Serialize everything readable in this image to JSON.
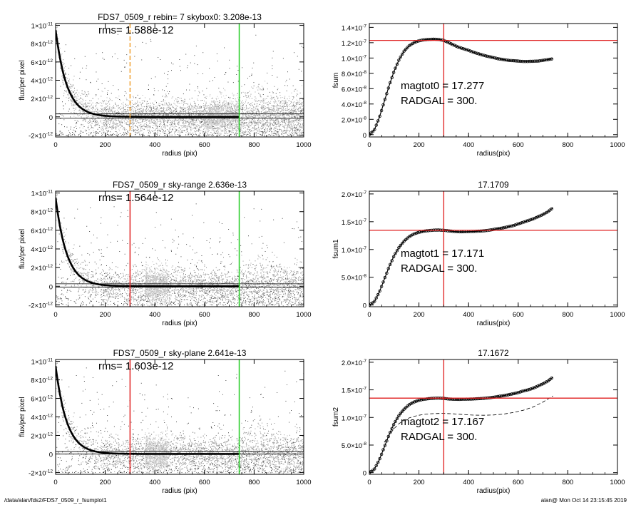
{
  "footer": {
    "left": "/data/alan/fds2/FDS7_0509_r_fsumplot1",
    "right": "alan@  Mon Oct 14 23:15:45 2019"
  },
  "colors": {
    "black": "#000000",
    "grey": "#a0a0a0",
    "red": "#e02020",
    "green": "#22cc22",
    "orange": "#f0a030"
  },
  "chart_data": [
    {
      "id": "profile0",
      "type": "scatter",
      "title": "FDS7_0509_r rebin= 7    skybox0:  3.208e-13",
      "annotation": "rms= 1.588e-12",
      "xlabel": "radius (pix)",
      "ylabel": "flux/per pixel",
      "xlim": [
        0,
        1000
      ],
      "ylim": [
        -2.2e-12,
        1.02e-11
      ],
      "xticks": [
        "0",
        "200",
        "400",
        "600",
        "800",
        "1000"
      ],
      "yticks": [
        {
          "v": 1e-11,
          "m": "1×10",
          "e": "-11"
        },
        {
          "v": 8e-12,
          "m": "8×10",
          "e": "-12"
        },
        {
          "v": 6e-12,
          "m": "6×10",
          "e": "-12"
        },
        {
          "v": 4e-12,
          "m": "4×10",
          "e": "-12"
        },
        {
          "v": 2e-12,
          "m": "2×10",
          "e": "-12"
        },
        {
          "v": 0,
          "m": "0",
          "e": ""
        },
        {
          "v": -2e-12,
          "m": "-2×10",
          "e": "-12"
        }
      ],
      "profile": {
        "amplitude": 9.5e-12,
        "scale": 45,
        "sky": 0
      },
      "hlines": [
        3.2e-13,
        -1.6e-13
      ],
      "vlines": [
        {
          "x": 300,
          "color": "orange",
          "dashed": true
        },
        {
          "x": 740,
          "color": "green",
          "dashed": false
        }
      ],
      "grey_band": [
        600,
        740
      ]
    },
    {
      "id": "fsum0",
      "type": "line",
      "title": "",
      "annotation_lines": [
        "magtot0 = 17.277",
        "RADGAL =    300."
      ],
      "xlabel": "radius(pix)",
      "ylabel": "fsum",
      "xlim": [
        0,
        1000
      ],
      "ylim": [
        -3e-09,
        1.45e-07
      ],
      "xticks": [
        "0",
        "200",
        "400",
        "600",
        "800",
        "1000"
      ],
      "yticks": [
        {
          "v": 1.4e-07,
          "m": "1.4×10",
          "e": "-7"
        },
        {
          "v": 1.2e-07,
          "m": "1.2×10",
          "e": "-7"
        },
        {
          "v": 1e-07,
          "m": "1.0×10",
          "e": "-7"
        },
        {
          "v": 8e-08,
          "m": "8.0×10",
          "e": "-8"
        },
        {
          "v": 6e-08,
          "m": "6.0×10",
          "e": "-8"
        },
        {
          "v": 4e-08,
          "m": "4.0×10",
          "e": "-8"
        },
        {
          "v": 2e-08,
          "m": "2.0×10",
          "e": "-8"
        },
        {
          "v": 0,
          "m": "0",
          "e": ""
        }
      ],
      "curve": {
        "x": [
          0,
          20,
          40,
          60,
          80,
          100,
          120,
          140,
          160,
          180,
          200,
          220,
          240,
          260,
          280,
          300,
          320,
          340,
          360,
          380,
          400,
          420,
          440,
          460,
          480,
          500,
          520,
          540,
          560,
          580,
          600,
          620,
          640,
          660,
          680,
          700,
          720,
          740
        ],
        "y": [
          0,
          6e-09,
          2.2e-08,
          4.3e-08,
          6.4e-08,
          8.3e-08,
          9.8e-08,
          1.09e-07,
          1.16e-07,
          1.2e-07,
          1.225e-07,
          1.238e-07,
          1.243e-07,
          1.245e-07,
          1.242e-07,
          1.23e-07,
          1.2e-07,
          1.17e-07,
          1.14e-07,
          1.12e-07,
          1.1e-07,
          1.075e-07,
          1.055e-07,
          1.035e-07,
          1.02e-07,
          1.005e-07,
          9.9e-08,
          9.8e-08,
          9.7e-08,
          9.65e-08,
          9.6e-08,
          9.55e-08,
          9.55e-08,
          9.58e-08,
          9.6e-08,
          9.7e-08,
          9.8e-08,
          9.9e-08
        ]
      },
      "dashed_curve": null,
      "hline": 1.23e-07,
      "vline": 300
    },
    {
      "id": "profile1",
      "type": "scatter",
      "title": "FDS7_0509_r sky-range  2.636e-13",
      "annotation": "rms= 1.564e-12",
      "xlabel": "radius (pix)",
      "ylabel": "flux/per pixel",
      "xlim": [
        0,
        1000
      ],
      "ylim": [
        -2.2e-12,
        1.02e-11
      ],
      "xticks": [
        "0",
        "200",
        "400",
        "600",
        "800",
        "1000"
      ],
      "yticks": [
        {
          "v": 1e-11,
          "m": "1×10",
          "e": "-11"
        },
        {
          "v": 8e-12,
          "m": "8×10",
          "e": "-12"
        },
        {
          "v": 6e-12,
          "m": "6×10",
          "e": "-12"
        },
        {
          "v": 4e-12,
          "m": "4×10",
          "e": "-12"
        },
        {
          "v": 2e-12,
          "m": "2×10",
          "e": "-12"
        },
        {
          "v": 0,
          "m": "0",
          "e": ""
        },
        {
          "v": -2e-12,
          "m": "-2×10",
          "e": "-12"
        }
      ],
      "profile": {
        "amplitude": 9.5e-12,
        "scale": 45,
        "sky": 0
      },
      "hlines": [
        2.6e-13,
        -1e-13
      ],
      "vlines": [
        {
          "x": 300,
          "color": "red",
          "dashed": false
        },
        {
          "x": 740,
          "color": "green",
          "dashed": false
        }
      ],
      "grey_band": [
        360,
        450
      ]
    },
    {
      "id": "fsum1",
      "type": "line",
      "title": "17.1709",
      "annotation_lines": [
        "magtot1 = 17.171",
        "RADGAL =    300."
      ],
      "xlabel": "radius(pix)",
      "ylabel": "fsum1",
      "xlim": [
        0,
        1000
      ],
      "ylim": [
        -3e-09,
        2.05e-07
      ],
      "xticks": [
        "0",
        "200",
        "400",
        "600",
        "800",
        "1000"
      ],
      "yticks": [
        {
          "v": 2e-07,
          "m": "2.0×10",
          "e": "-7"
        },
        {
          "v": 1.5e-07,
          "m": "1.5×10",
          "e": "-7"
        },
        {
          "v": 1e-07,
          "m": "1.0×10",
          "e": "-7"
        },
        {
          "v": 5e-08,
          "m": "5.0×10",
          "e": "-8"
        },
        {
          "v": 0,
          "m": "0",
          "e": ""
        }
      ],
      "curve": {
        "x": [
          0,
          20,
          40,
          60,
          80,
          100,
          120,
          140,
          160,
          180,
          200,
          220,
          240,
          260,
          280,
          300,
          320,
          340,
          360,
          380,
          400,
          420,
          440,
          460,
          480,
          500,
          520,
          540,
          560,
          580,
          600,
          620,
          640,
          660,
          680,
          700,
          720,
          740
        ],
        "y": [
          0,
          6e-09,
          2.3e-08,
          4.6e-08,
          6.9e-08,
          8.9e-08,
          1.04e-07,
          1.15e-07,
          1.23e-07,
          1.28e-07,
          1.31e-07,
          1.33e-07,
          1.34e-07,
          1.348e-07,
          1.35e-07,
          1.345e-07,
          1.335e-07,
          1.325e-07,
          1.32e-07,
          1.32e-07,
          1.322e-07,
          1.325e-07,
          1.33e-07,
          1.335e-07,
          1.345e-07,
          1.36e-07,
          1.375e-07,
          1.39e-07,
          1.41e-07,
          1.43e-07,
          1.46e-07,
          1.49e-07,
          1.52e-07,
          1.55e-07,
          1.59e-07,
          1.63e-07,
          1.68e-07,
          1.75e-07
        ]
      },
      "dashed_curve": null,
      "hline": 1.345e-07,
      "vline": 300
    },
    {
      "id": "profile2",
      "type": "scatter",
      "title": "FDS7_0509_r sky-plane  2.641e-13",
      "annotation": "rms= 1.603e-12",
      "xlabel": "radius (pix)",
      "ylabel": "flux/per pixel",
      "xlim": [
        0,
        1000
      ],
      "ylim": [
        -2.2e-12,
        1.02e-11
      ],
      "xticks": [
        "0",
        "200",
        "400",
        "600",
        "800",
        "1000"
      ],
      "yticks": [
        {
          "v": 1e-11,
          "m": "1×10",
          "e": "-11"
        },
        {
          "v": 8e-12,
          "m": "8×10",
          "e": "-12"
        },
        {
          "v": 6e-12,
          "m": "6×10",
          "e": "-12"
        },
        {
          "v": 4e-12,
          "m": "4×10",
          "e": "-12"
        },
        {
          "v": 2e-12,
          "m": "2×10",
          "e": "-12"
        },
        {
          "v": 0,
          "m": "0",
          "e": ""
        },
        {
          "v": -2e-12,
          "m": "-2×10",
          "e": "-12"
        }
      ],
      "profile": {
        "amplitude": 9.5e-12,
        "scale": 45,
        "sky": 0
      },
      "hlines": [
        2.6e-13,
        0
      ],
      "vlines": [
        {
          "x": 300,
          "color": "red",
          "dashed": false
        },
        {
          "x": 740,
          "color": "green",
          "dashed": false
        }
      ],
      "grey_band": [
        360,
        450
      ]
    },
    {
      "id": "fsum2",
      "type": "line",
      "title": "17.1672",
      "annotation_lines": [
        "magtot2 = 17.167",
        "RADGAL =    300."
      ],
      "xlabel": "radius(pix)",
      "ylabel": "fsum2",
      "xlim": [
        0,
        1000
      ],
      "ylim": [
        -3e-09,
        2.05e-07
      ],
      "xticks": [
        "0",
        "200",
        "400",
        "600",
        "800",
        "1000"
      ],
      "yticks": [
        {
          "v": 2e-07,
          "m": "2.0×10",
          "e": "-7"
        },
        {
          "v": 1.5e-07,
          "m": "1.5×10",
          "e": "-7"
        },
        {
          "v": 1e-07,
          "m": "1.0×10",
          "e": "-7"
        },
        {
          "v": 5e-08,
          "m": "5.0×10",
          "e": "-8"
        },
        {
          "v": 0,
          "m": "0",
          "e": ""
        }
      ],
      "curve": {
        "x": [
          0,
          20,
          40,
          60,
          80,
          100,
          120,
          140,
          160,
          180,
          200,
          220,
          240,
          260,
          280,
          300,
          320,
          340,
          360,
          380,
          400,
          420,
          440,
          460,
          480,
          500,
          520,
          540,
          560,
          580,
          600,
          620,
          640,
          660,
          680,
          700,
          720,
          740
        ],
        "y": [
          0,
          6e-09,
          2.3e-08,
          4.6e-08,
          6.9e-08,
          8.9e-08,
          1.04e-07,
          1.15e-07,
          1.23e-07,
          1.28e-07,
          1.31e-07,
          1.33e-07,
          1.34e-07,
          1.348e-07,
          1.35e-07,
          1.345e-07,
          1.335e-07,
          1.33e-07,
          1.328e-07,
          1.33e-07,
          1.332e-07,
          1.335e-07,
          1.34e-07,
          1.345e-07,
          1.355e-07,
          1.365e-07,
          1.38e-07,
          1.395e-07,
          1.41e-07,
          1.43e-07,
          1.45e-07,
          1.48e-07,
          1.5e-07,
          1.53e-07,
          1.57e-07,
          1.61e-07,
          1.66e-07,
          1.73e-07
        ]
      },
      "dashed_curve": {
        "x": [
          60,
          80,
          100,
          120,
          140,
          160,
          180,
          200,
          220,
          240,
          260,
          280,
          300,
          340,
          380,
          420,
          460,
          500,
          540,
          580,
          620,
          660,
          700,
          740
        ],
        "y": [
          5.5e-08,
          6.8e-08,
          8e-08,
          8.9e-08,
          9.5e-08,
          9.9e-08,
          1.02e-07,
          1.04e-07,
          1.055e-07,
          1.065e-07,
          1.07e-07,
          1.072e-07,
          1.073e-07,
          1.065e-07,
          1.052e-07,
          1.042e-07,
          1.04e-07,
          1.045e-07,
          1.06e-07,
          1.09e-07,
          1.13e-07,
          1.19e-07,
          1.28e-07,
          1.39e-07
        ]
      },
      "hline": 1.35e-07,
      "vline": 300
    }
  ]
}
